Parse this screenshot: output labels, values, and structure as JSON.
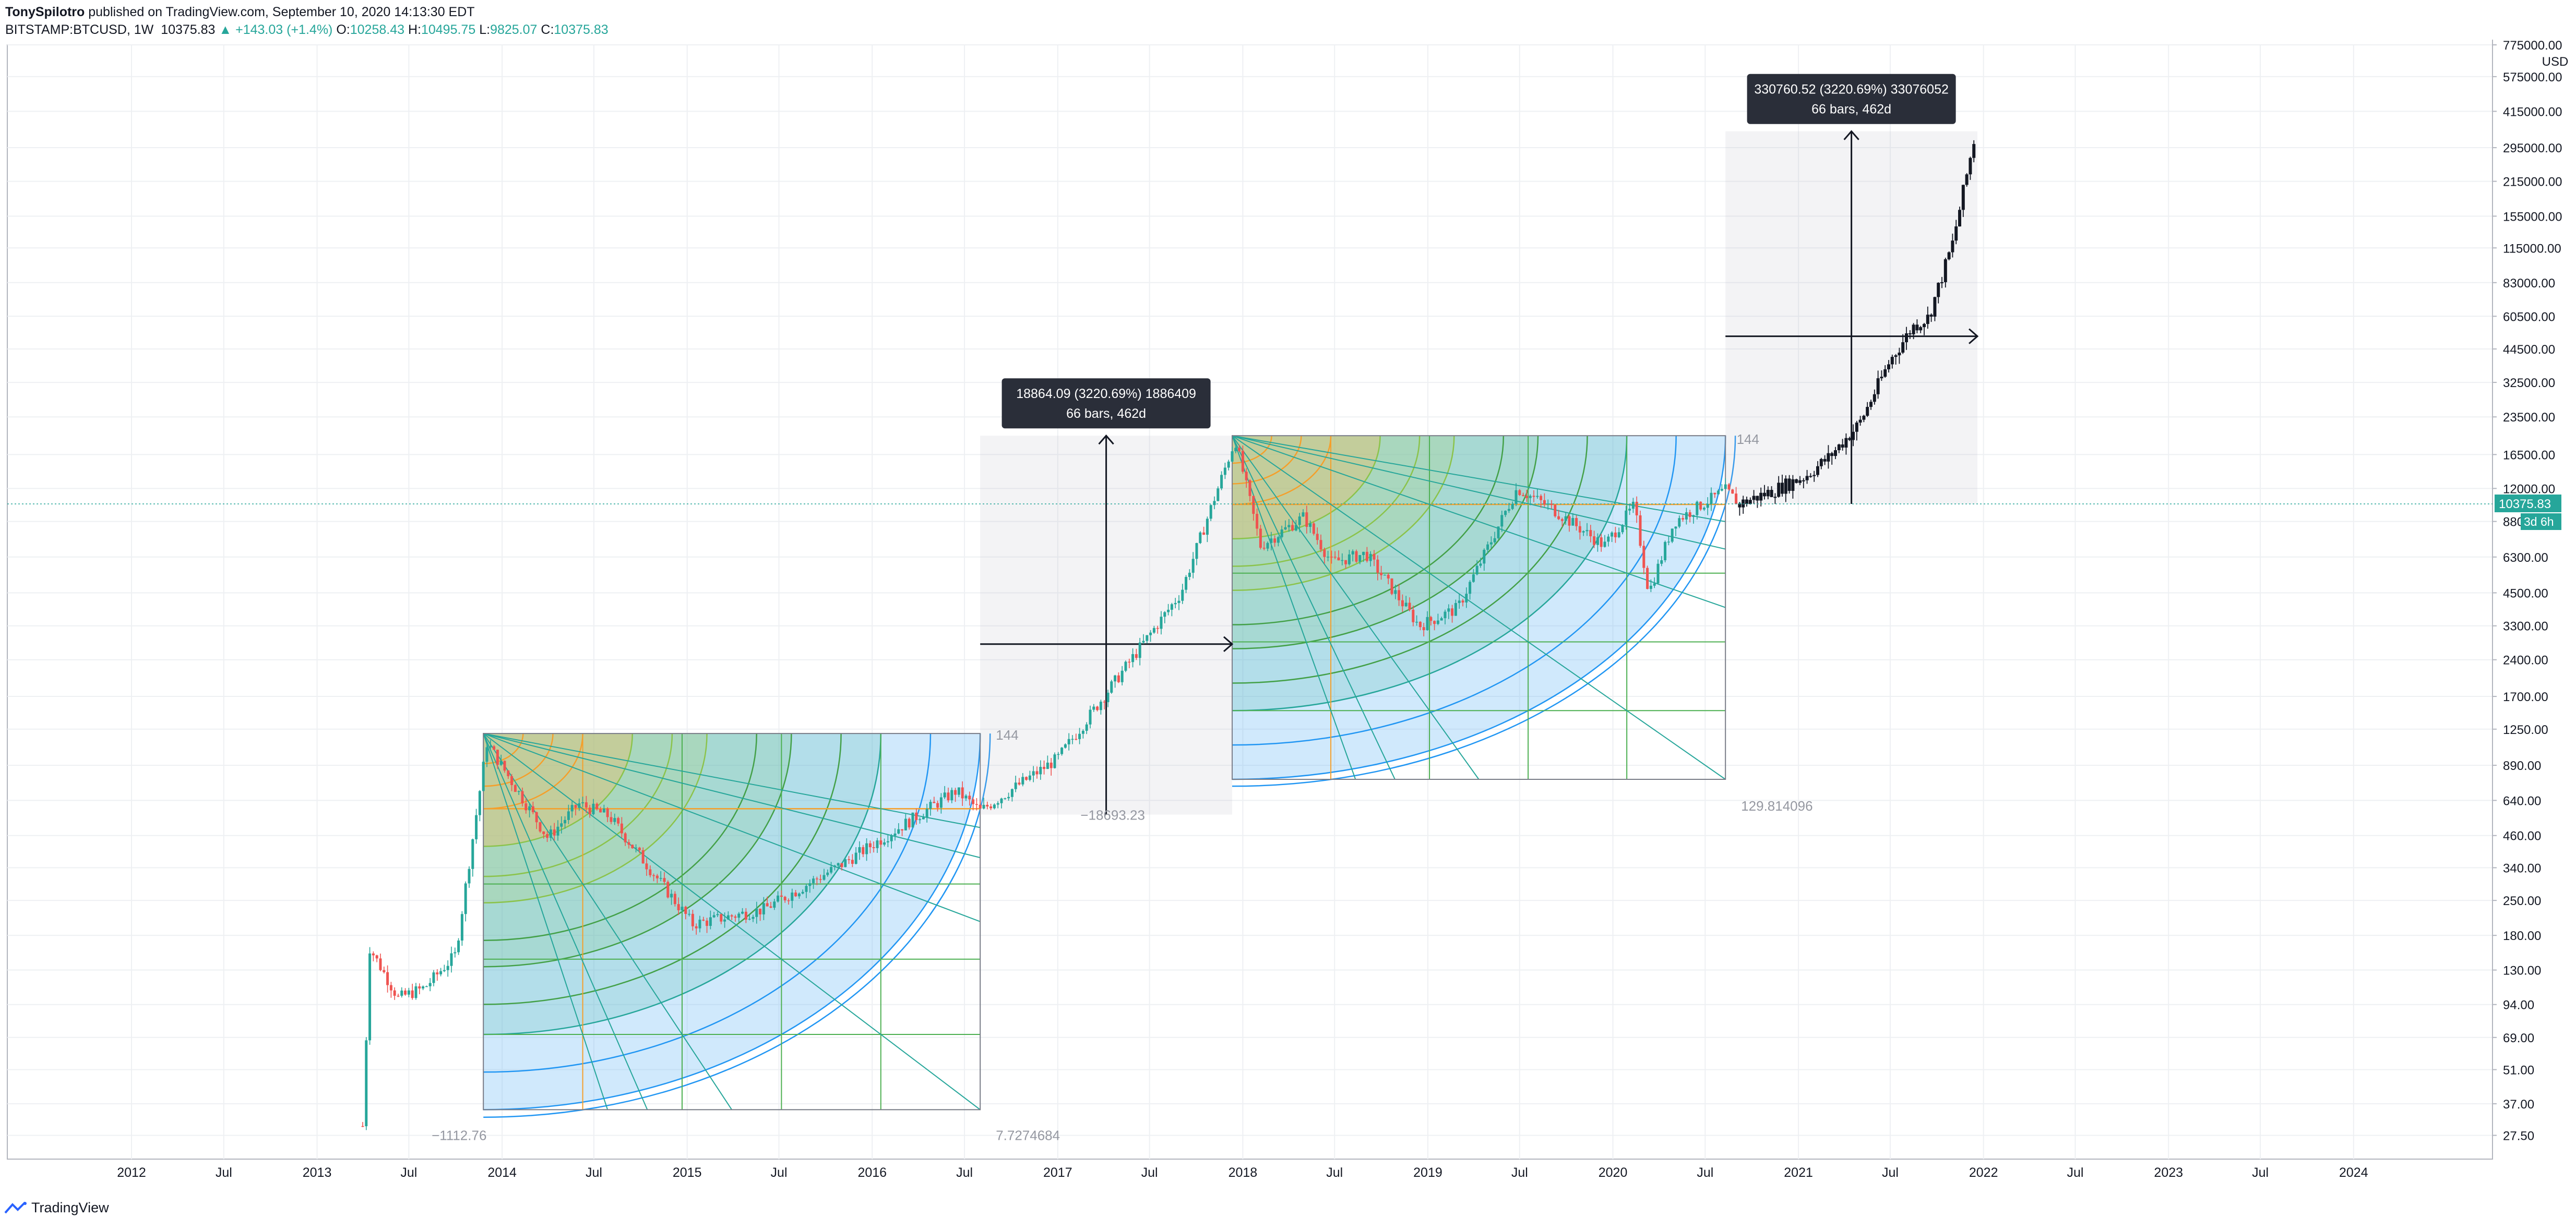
{
  "header": {
    "author": "TonySpilotro",
    "published": "published on TradingView.com, September 10, 2020 14:13:30 EDT",
    "symbol": "BITSTAMP:BTCUSD, 1W",
    "last": "10375.83",
    "change_arrow": "▲",
    "change": "+143.03 (+1.4%)",
    "o_label": "O:",
    "o": "10258.43",
    "h_label": "H:",
    "h": "10495.75",
    "l_label": "L:",
    "l": "9825.07",
    "c_label": "C:",
    "c": "10375.83"
  },
  "footer": {
    "brand": "TradingView",
    "logo_icon": "tradingview-logo-icon"
  },
  "colors": {
    "up": "#26a69a",
    "down": "#ef5350",
    "grid": "#eef0f3",
    "price_line": "#26a69a"
  },
  "chart_data": {
    "type": "candlestick",
    "y_scale": "log",
    "currency": "USD",
    "ylim": [
      22,
      775000
    ],
    "xlim": [
      "2011-05-01",
      "2024-10-01"
    ],
    "x_ticks": [
      {
        "label": "2012",
        "date": "2012-01-01"
      },
      {
        "label": "Jul",
        "date": "2012-07-01"
      },
      {
        "label": "2013",
        "date": "2013-01-01"
      },
      {
        "label": "Jul",
        "date": "2013-07-01"
      },
      {
        "label": "2014",
        "date": "2014-01-01"
      },
      {
        "label": "Jul",
        "date": "2014-07-01"
      },
      {
        "label": "2015",
        "date": "2015-01-01"
      },
      {
        "label": "Jul",
        "date": "2015-07-01"
      },
      {
        "label": "2016",
        "date": "2016-01-01"
      },
      {
        "label": "Jul",
        "date": "2016-07-01"
      },
      {
        "label": "2017",
        "date": "2017-01-01"
      },
      {
        "label": "Jul",
        "date": "2017-07-01"
      },
      {
        "label": "2018",
        "date": "2018-01-01"
      },
      {
        "label": "Jul",
        "date": "2018-07-01"
      },
      {
        "label": "2019",
        "date": "2019-01-01"
      },
      {
        "label": "Jul",
        "date": "2019-07-01"
      },
      {
        "label": "2020",
        "date": "2020-01-01"
      },
      {
        "label": "Jul",
        "date": "2020-07-01"
      },
      {
        "label": "2021",
        "date": "2021-01-01"
      },
      {
        "label": "Jul",
        "date": "2021-07-01"
      },
      {
        "label": "2022",
        "date": "2022-01-01"
      },
      {
        "label": "Jul",
        "date": "2022-07-01"
      },
      {
        "label": "2023",
        "date": "2023-01-01"
      },
      {
        "label": "Jul",
        "date": "2023-07-01"
      },
      {
        "label": "2024",
        "date": "2024-01-01"
      }
    ],
    "y_ticks": [
      "775000.00",
      "575000.00",
      "415000.00",
      "295000.00",
      "215000.00",
      "155000.00",
      "115000.00",
      "83000.00",
      "60500.00",
      "44500.00",
      "32500.00",
      "23500.00",
      "16500.00",
      "12000.00",
      "8800.00",
      "6300.00",
      "4500.00",
      "3300.00",
      "2400.00",
      "1700.00",
      "1250.00",
      "890.00",
      "640.00",
      "460.00",
      "340.00",
      "250.00",
      "180.00",
      "130.00",
      "94.00",
      "69.00",
      "51.00",
      "37.00",
      "27.50"
    ],
    "y_unit_label": "USD",
    "last_price": {
      "value": 10375.83,
      "label": "10375.83",
      "countdown": "3d 6h"
    },
    "anchors": [
      {
        "date": "2013-04-01",
        "value": 30
      },
      {
        "date": "2013-04-15",
        "value": 160
      },
      {
        "date": "2013-06-10",
        "value": 100
      },
      {
        "date": "2013-08-01",
        "value": 110
      },
      {
        "date": "2013-10-01",
        "value": 150
      },
      {
        "date": "2013-12-02",
        "value": 1100
      },
      {
        "date": "2014-04-01",
        "value": 450
      },
      {
        "date": "2014-06-01",
        "value": 620
      },
      {
        "date": "2014-08-01",
        "value": 550
      },
      {
        "date": "2015-01-12",
        "value": 200
      },
      {
        "date": "2015-06-01",
        "value": 230
      },
      {
        "date": "2015-11-01",
        "value": 350
      },
      {
        "date": "2016-06-15",
        "value": 700
      },
      {
        "date": "2016-08-01",
        "value": 580
      },
      {
        "date": "2017-01-01",
        "value": 950
      },
      {
        "date": "2017-06-01",
        "value": 2500
      },
      {
        "date": "2017-09-01",
        "value": 4500
      },
      {
        "date": "2017-12-17",
        "value": 19000
      },
      {
        "date": "2018-02-05",
        "value": 7000
      },
      {
        "date": "2018-05-01",
        "value": 9200
      },
      {
        "date": "2018-06-25",
        "value": 6000
      },
      {
        "date": "2018-09-01",
        "value": 6500
      },
      {
        "date": "2018-12-15",
        "value": 3300
      },
      {
        "date": "2019-03-01",
        "value": 3900
      },
      {
        "date": "2019-06-26",
        "value": 12000
      },
      {
        "date": "2019-09-01",
        "value": 10000
      },
      {
        "date": "2019-12-15",
        "value": 7000
      },
      {
        "date": "2020-02-12",
        "value": 10200
      },
      {
        "date": "2020-03-12",
        "value": 4500
      },
      {
        "date": "2020-05-01",
        "value": 8800
      },
      {
        "date": "2020-08-10",
        "value": 11800
      },
      {
        "date": "2020-09-07",
        "value": 10376
      }
    ],
    "projection": [
      {
        "date": "2020-09-07",
        "value": 10376
      },
      {
        "date": "2020-11-01",
        "value": 11500
      },
      {
        "date": "2021-01-15",
        "value": 13500
      },
      {
        "date": "2021-03-01",
        "value": 16000
      },
      {
        "date": "2021-05-01",
        "value": 22000
      },
      {
        "date": "2021-07-01",
        "value": 40000
      },
      {
        "date": "2021-08-15",
        "value": 55000
      },
      {
        "date": "2021-09-15",
        "value": 60000
      },
      {
        "date": "2021-11-01",
        "value": 120000
      },
      {
        "date": "2021-12-15",
        "value": 330000
      }
    ],
    "measure_labels": [
      {
        "lines": [
          "18864.09 (3220.69%) 1886409",
          "66 bars, 462d"
        ]
      },
      {
        "lines": [
          "330760.52 (3220.69%) 33076052",
          "66 bars, 462d"
        ]
      }
    ],
    "drawing_labels": [
      "144",
      "−1112.76",
      "7.7274684",
      "144",
      "−18693.23",
      "129.814096"
    ],
    "gann_fans": [
      {
        "start": "2013-11-25",
        "end": "2016-08-01",
        "top": 1200,
        "bottom": 35
      },
      {
        "start": "2017-12-11",
        "end": "2020-08-10",
        "top": 19700,
        "bottom": 780
      }
    ]
  }
}
